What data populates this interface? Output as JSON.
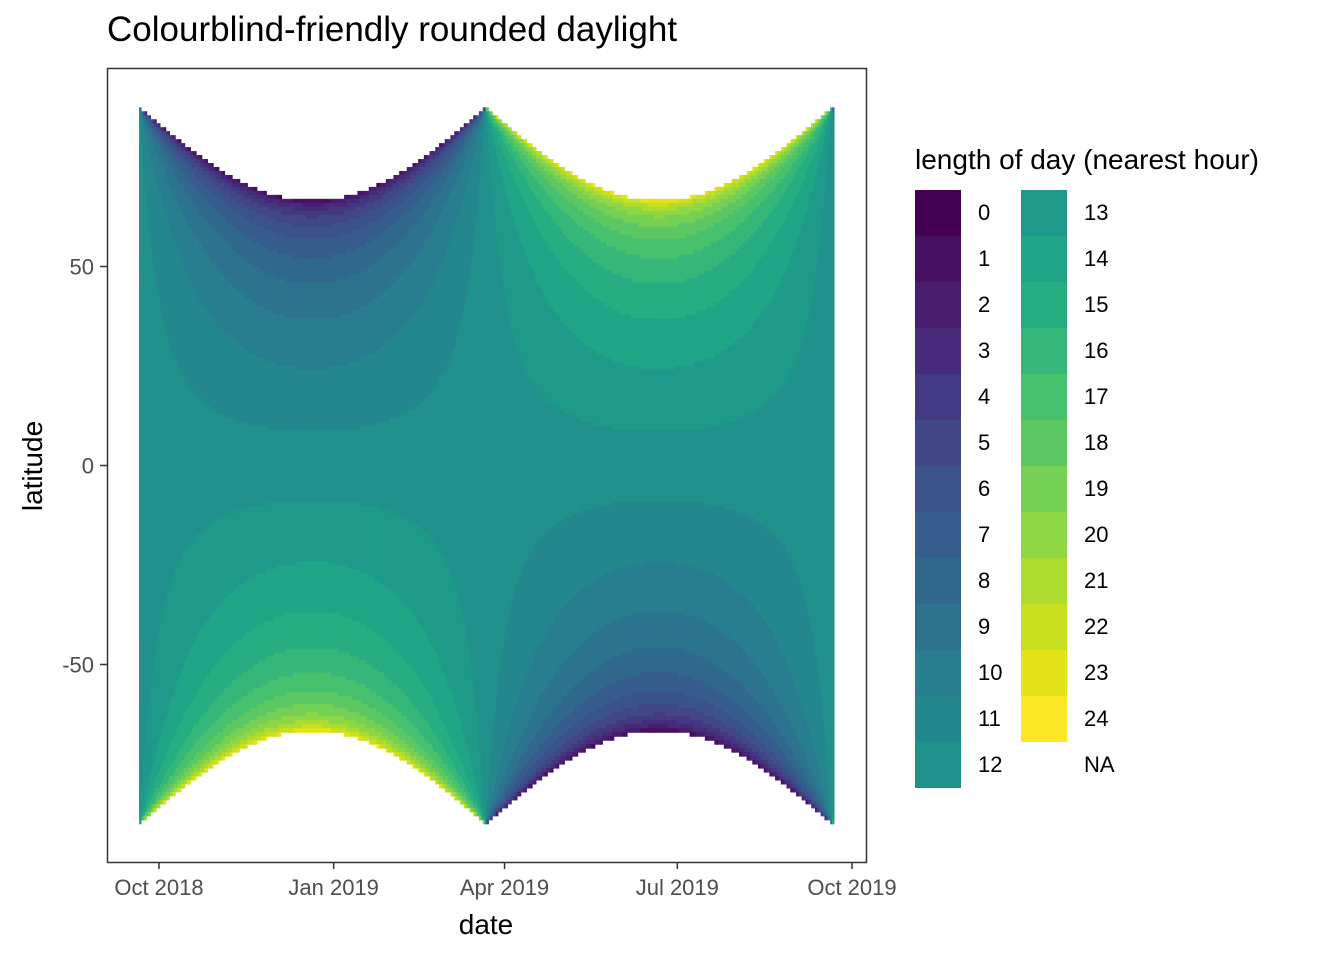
{
  "chart_data": {
    "type": "heatmap",
    "title": "Colourblind-friendly rounded daylight",
    "xlabel": "date",
    "ylabel": "latitude",
    "x_range": [
      "2018-09-21",
      "2019-09-21"
    ],
    "x_ticks": [
      {
        "date": "2018-10-01",
        "label": "Oct 2018"
      },
      {
        "date": "2019-01-01",
        "label": "Jan 2019"
      },
      {
        "date": "2019-04-01",
        "label": "Apr 2019"
      },
      {
        "date": "2019-07-01",
        "label": "Jul 2019"
      },
      {
        "date": "2019-10-01",
        "label": "Oct 2019"
      }
    ],
    "y_range": [
      -90,
      90
    ],
    "y_ticks": [
      {
        "value": 50,
        "label": "50"
      },
      {
        "value": 0,
        "label": "0"
      },
      {
        "value": -50,
        "label": "-50"
      }
    ],
    "value": "length of day, rounded to the nearest hour",
    "grid": false,
    "legend": {
      "title": "length of day (nearest hour)",
      "position": "right",
      "columns": [
        [
          "0",
          "1",
          "2",
          "3",
          "4",
          "5",
          "6",
          "7",
          "8",
          "9",
          "10",
          "11",
          "12"
        ],
        [
          "13",
          "14",
          "15",
          "16",
          "17",
          "18",
          "19",
          "20",
          "21",
          "22",
          "23",
          "24",
          "NA"
        ]
      ],
      "colors": {
        "0": "#440154",
        "1": "#471063",
        "2": "#481d6f",
        "3": "#472a7a",
        "4": "#433982",
        "5": "#404688",
        "6": "#3b528b",
        "7": "#365d8d",
        "8": "#31688e",
        "9": "#2c738e",
        "10": "#287d8e",
        "11": "#24878e",
        "12": "#21918c",
        "13": "#1f9a8a",
        "14": "#20a486",
        "15": "#27ad81",
        "16": "#35b779",
        "17": "#47c16e",
        "18": "#5dc863",
        "19": "#75d054",
        "20": "#8fd744",
        "21": "#addc30",
        "22": "#c8e020",
        "23": "#e3e418",
        "24": "#fde725",
        "NA": "#ffffff"
      }
    }
  }
}
